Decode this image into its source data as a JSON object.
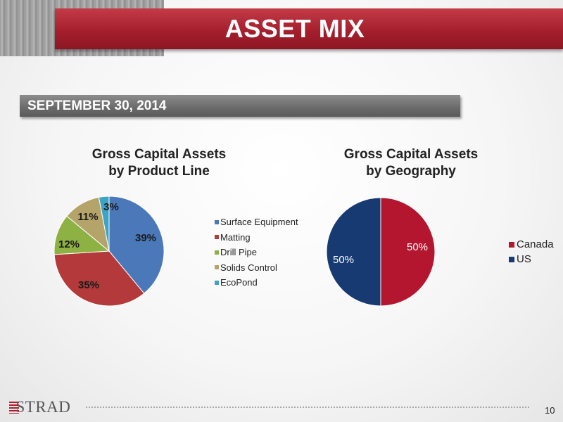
{
  "title": "ASSET MIX",
  "subtitle": "SEPTEMBER 30, 2014",
  "page_number": "10",
  "logo_text": "STRAD",
  "colors": {
    "title_red": "#a51f2d",
    "surface_equipment": "#4a78b8",
    "matting": "#b3393a",
    "drill_pipe": "#8eb143",
    "solids_control": "#b5a46a",
    "ecopond": "#3fa3c4",
    "canada": "#b5162f",
    "us": "#173a72"
  },
  "chart_data": [
    {
      "type": "pie",
      "title_line1": "Gross Capital Assets",
      "title_line2": "by Product Line",
      "slices": [
        {
          "label": "Surface Equipment",
          "value": 39,
          "text": "39%",
          "color": "#4a78b8"
        },
        {
          "label": "Matting",
          "value": 35,
          "text": "35%",
          "color": "#b3393a"
        },
        {
          "label": "Drill Pipe",
          "value": 12,
          "text": "12%",
          "color": "#8eb143"
        },
        {
          "label": "Solids Control",
          "value": 11,
          "text": "11%",
          "color": "#b5a46a"
        },
        {
          "label": "EcoPond",
          "value": 3,
          "text": "3%",
          "color": "#3fa3c4"
        }
      ],
      "legend_position": "right"
    },
    {
      "type": "pie",
      "title_line1": "Gross Capital Assets",
      "title_line2": "by Geography",
      "slices": [
        {
          "label": "Canada",
          "value": 50,
          "text": "50%",
          "color": "#b5162f"
        },
        {
          "label": "US",
          "value": 50,
          "text": "50%",
          "color": "#173a72"
        }
      ],
      "legend_position": "right"
    }
  ]
}
